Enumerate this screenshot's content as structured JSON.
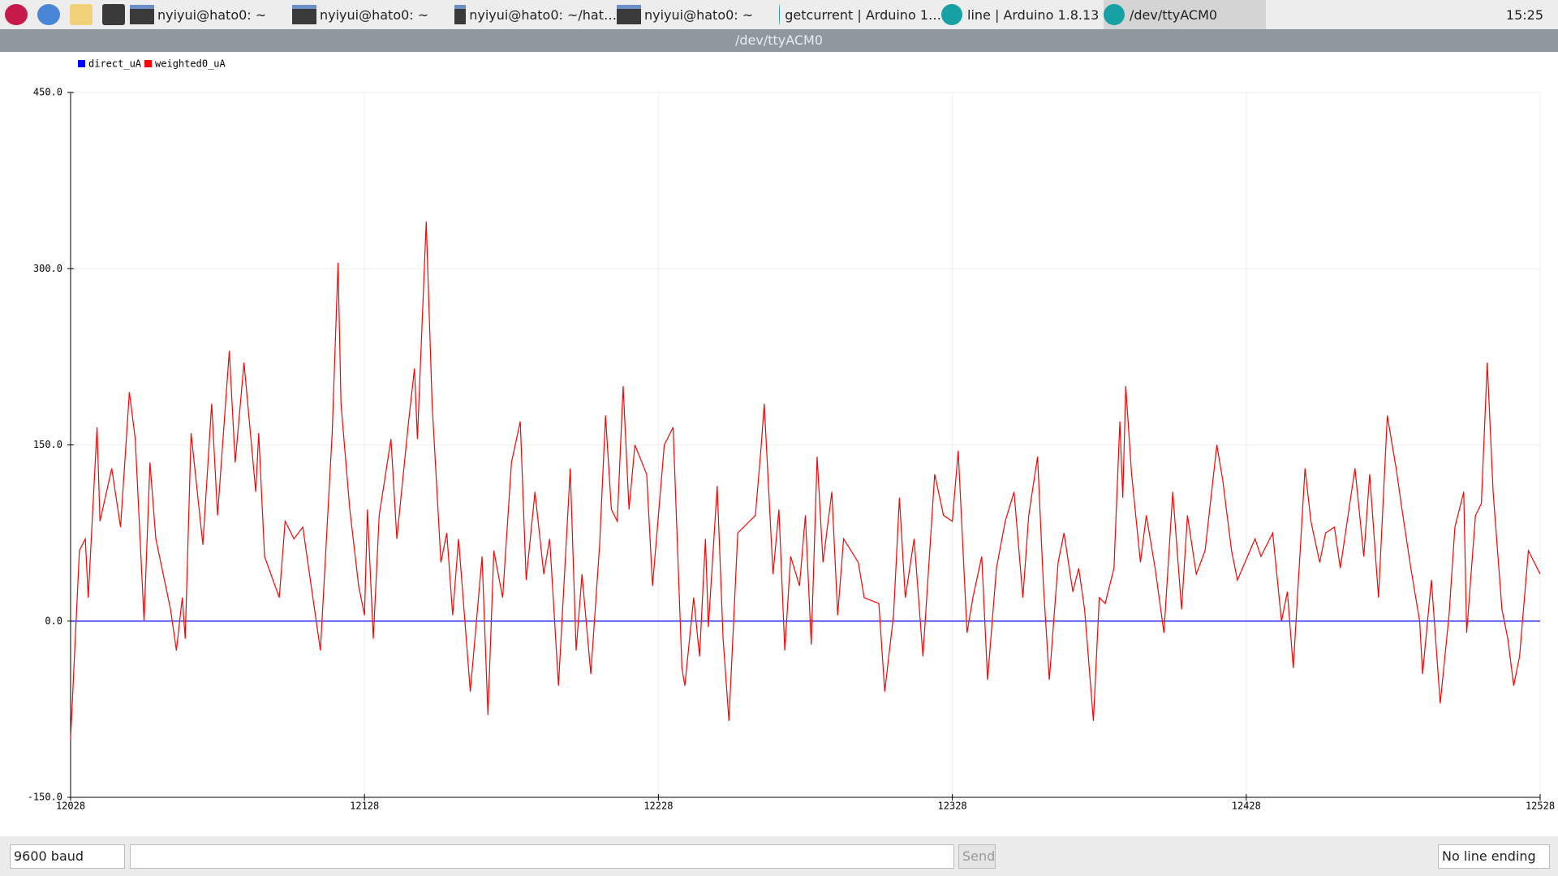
{
  "taskbar": {
    "tasks": [
      "nyiyui@hato0: ~",
      "nyiyui@hato0: ~",
      "nyiyui@hato0: ~/hat…",
      "nyiyui@hato0: ~",
      "getcurrent | Arduino 1…",
      "line | Arduino 1.8.13",
      "/dev/ttyACM0"
    ],
    "clock": "15:25"
  },
  "window": {
    "title": "/dev/ttyACM0"
  },
  "controls": {
    "baud": "9600 baud",
    "send": "Send",
    "line_ending": "No line ending"
  },
  "chart_data": {
    "type": "line",
    "grid": true,
    "xlim": [
      12028,
      12528
    ],
    "xticks": [
      12028,
      12128,
      12228,
      12328,
      12428,
      12528
    ],
    "ylim": [
      -150,
      450
    ],
    "yticks": [
      {
        "value": 450,
        "label": "450.0"
      },
      {
        "value": 300,
        "label": "300.0"
      },
      {
        "value": 150,
        "label": "150.0"
      },
      {
        "value": 0,
        "label": "0.0"
      },
      {
        "value": -150,
        "label": "-150.0"
      }
    ],
    "series": [
      {
        "name": "direct_uA",
        "color": "#0000ff",
        "x": [
          12028,
          12128,
          12228,
          12328,
          12428,
          12528
        ],
        "values": [
          0,
          0,
          0,
          0,
          0,
          0
        ]
      },
      {
        "name": "weighted0_uA",
        "color": "#ff0000",
        "x": [
          12028,
          12031,
          12033,
          12034,
          12037,
          12038,
          12042,
          12045,
          12048,
          12050,
          12053,
          12055,
          12057,
          12062,
          12064,
          12066,
          12067,
          12069,
          12073,
          12076,
          12078,
          12082,
          12084,
          12087,
          12091,
          12092,
          12094,
          12099,
          12101,
          12104,
          12107,
          12111,
          12113,
          12117,
          12119,
          12120,
          12123,
          12126,
          12128,
          12129,
          12131,
          12133,
          12137,
          12139,
          12143,
          12145,
          12146,
          12149,
          12151,
          12154,
          12156,
          12158,
          12160,
          12164,
          12168,
          12170,
          12172,
          12175,
          12178,
          12181,
          12183,
          12186,
          12189,
          12191,
          12194,
          12198,
          12200,
          12202,
          12205,
          12208,
          12210,
          12212,
          12214,
          12216,
          12218,
          12220,
          12224,
          12226,
          12230,
          12233,
          12236,
          12237,
          12240,
          12242,
          12244,
          12245,
          12248,
          12250,
          12252,
          12255,
          12261,
          12263,
          12264,
          12267,
          12269,
          12271,
          12273,
          12276,
          12278,
          12280,
          12282,
          12284,
          12287,
          12289,
          12291,
          12296,
          12298,
          12303,
          12305,
          12308,
          12310,
          12312,
          12315,
          12318,
          12322,
          12325,
          12328,
          12330,
          12333,
          12335,
          12338,
          12340,
          12343,
          12346,
          12349,
          12352,
          12354,
          12357,
          12359,
          12361,
          12364,
          12366,
          12369,
          12371,
          12373,
          12376,
          12378,
          12380,
          12383,
          12385,
          12386,
          12387,
          12389,
          12392,
          12394,
          12397,
          12400,
          12403,
          12406,
          12408,
          12411,
          12414,
          12418,
          12420,
          12423,
          12425,
          12431,
          12433,
          12437,
          12440,
          12442,
          12444,
          12448,
          12450,
          12453,
          12455,
          12458,
          12460,
          12465,
          12468,
          12470,
          12473,
          12476,
          12479,
          12481,
          12484,
          12487,
          12488,
          12491,
          12494,
          12497,
          12499,
          12502,
          12503,
          12506,
          12508,
          12510,
          12512,
          12515,
          12517,
          12519,
          12521,
          12524,
          12526,
          12528
        ],
        "values": [
          -100,
          60,
          70,
          20,
          165,
          85,
          130,
          80,
          195,
          155,
          0,
          135,
          70,
          10,
          -25,
          20,
          -15,
          160,
          65,
          185,
          90,
          230,
          135,
          220,
          110,
          160,
          55,
          20,
          85,
          70,
          80,
          10,
          -25,
          160,
          305,
          185,
          95,
          30,
          5,
          95,
          -15,
          90,
          155,
          70,
          170,
          215,
          155,
          340,
          185,
          50,
          75,
          5,
          70,
          -60,
          55,
          -80,
          60,
          20,
          135,
          170,
          35,
          110,
          40,
          70,
          -55,
          130,
          -25,
          40,
          -45,
          65,
          175,
          95,
          85,
          200,
          95,
          150,
          125,
          30,
          150,
          165,
          -40,
          -55,
          20,
          -30,
          70,
          -5,
          115,
          -15,
          -85,
          75,
          90,
          150,
          185,
          40,
          95,
          -25,
          55,
          30,
          90,
          -20,
          140,
          50,
          110,
          5,
          70,
          50,
          20,
          15,
          -60,
          5,
          105,
          20,
          70,
          -30,
          125,
          90,
          85,
          145,
          -10,
          20,
          55,
          -50,
          45,
          85,
          110,
          20,
          90,
          140,
          30,
          -50,
          50,
          75,
          25,
          45,
          10,
          -85,
          20,
          15,
          45,
          170,
          105,
          200,
          125,
          50,
          90,
          45,
          -10,
          110,
          10,
          90,
          40,
          60,
          150,
          120,
          60,
          35,
          70,
          55,
          75,
          0,
          25,
          -40,
          130,
          85,
          50,
          75,
          80,
          45,
          130,
          55,
          125,
          20,
          175,
          130,
          95,
          45,
          0,
          -45,
          35,
          -70,
          5,
          80,
          110,
          -10,
          90,
          100,
          220,
          110,
          10,
          -15,
          -55,
          -30,
          60,
          50,
          40
        ]
      }
    ]
  }
}
